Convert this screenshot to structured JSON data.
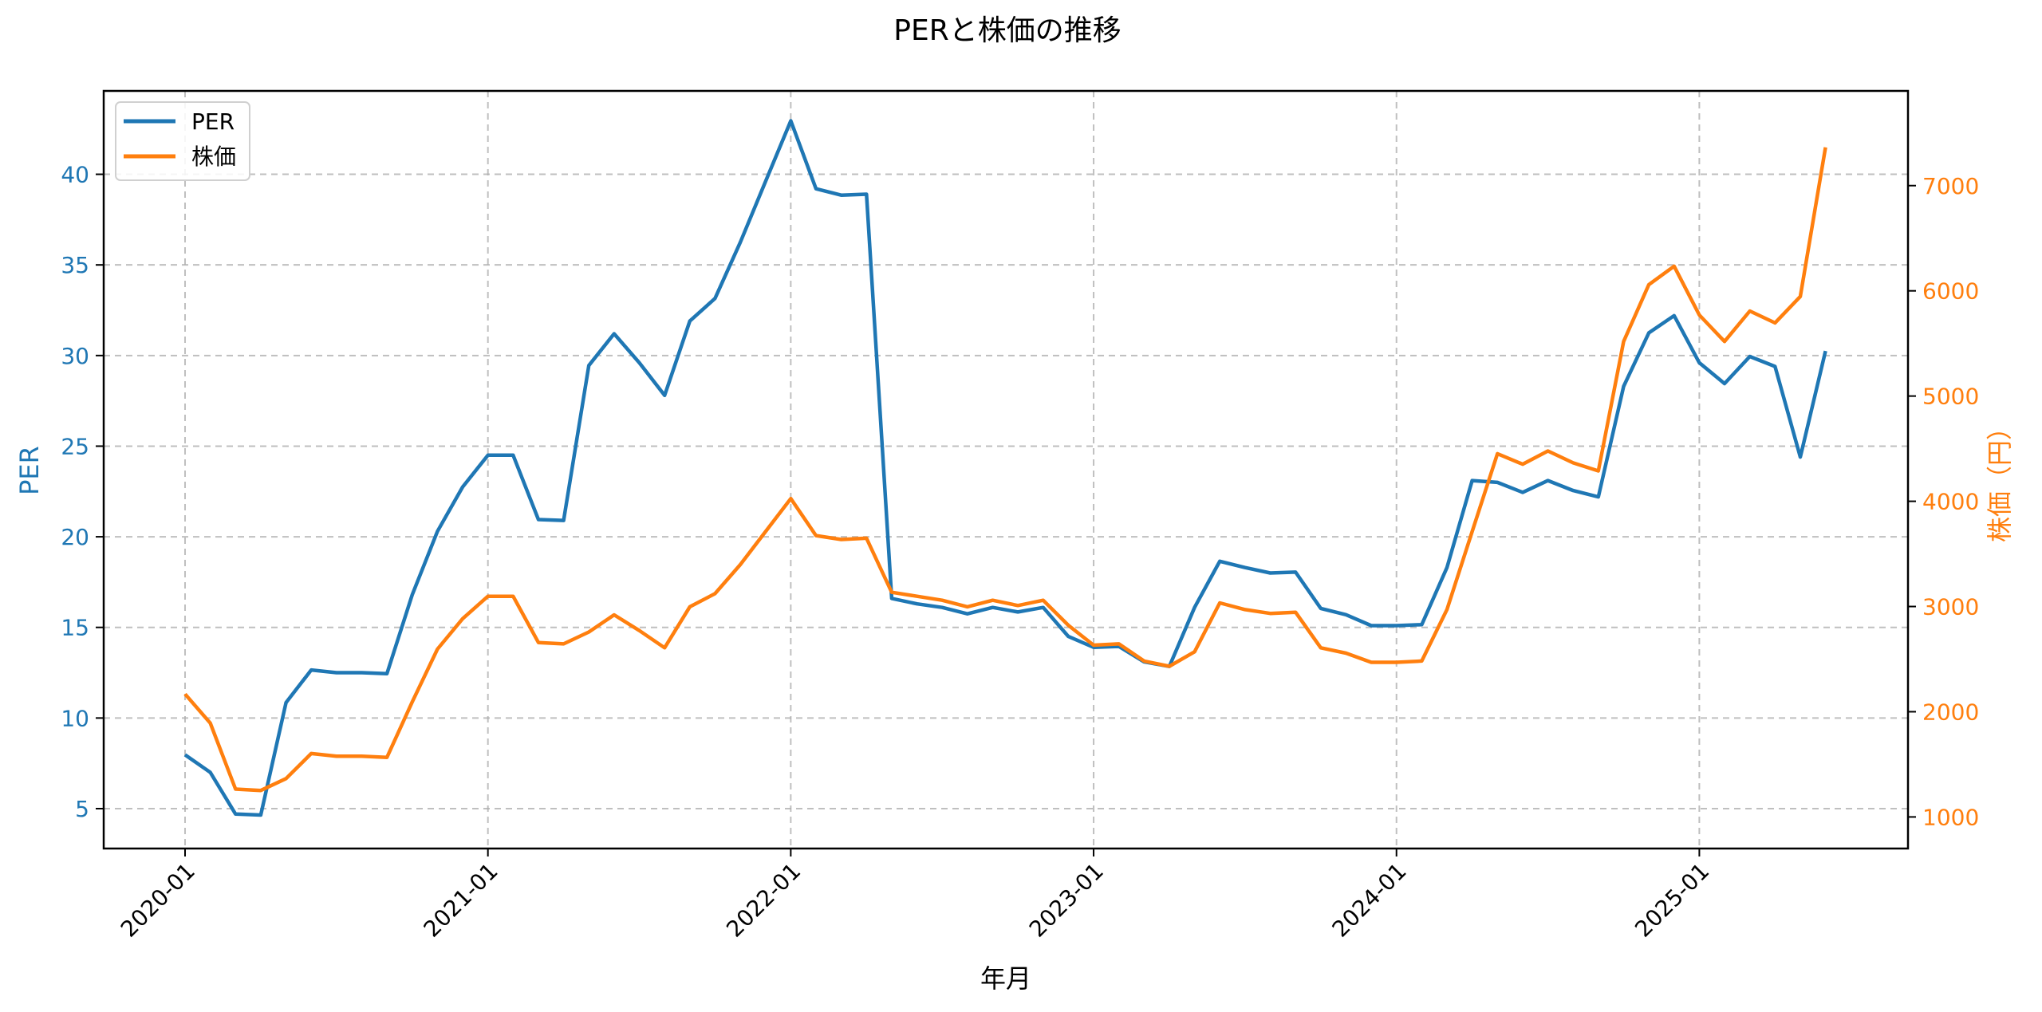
{
  "chart_data": {
    "type": "line",
    "title": "PERと株価の推移",
    "xlabel": "年月",
    "ylabel": "PER",
    "ylabel_right": "株価（円）",
    "x_tick_labels": [
      "2020-01",
      "2021-01",
      "2022-01",
      "2023-01",
      "2024-01",
      "2025-01"
    ],
    "y_ticks_left": [
      5,
      10,
      15,
      20,
      25,
      30,
      35,
      40
    ],
    "y_ticks_right": [
      1000,
      2000,
      3000,
      4000,
      5000,
      6000,
      7000
    ],
    "ylim_left": [
      2.8,
      44.6
    ],
    "ylim_right": [
      700,
      7900
    ],
    "grid": true,
    "legend_position": "upper left",
    "x": [
      "2020-01",
      "2020-02",
      "2020-03",
      "2020-04",
      "2020-05",
      "2020-06",
      "2020-07",
      "2020-08",
      "2020-09",
      "2020-10",
      "2020-11",
      "2020-12",
      "2021-01",
      "2021-02",
      "2021-03",
      "2021-04",
      "2021-05",
      "2021-06",
      "2021-07",
      "2021-08",
      "2021-09",
      "2021-10",
      "2021-11",
      "2021-12",
      "2022-01",
      "2022-02",
      "2022-03",
      "2022-04",
      "2022-05",
      "2022-06",
      "2022-07",
      "2022-08",
      "2022-09",
      "2022-10",
      "2022-11",
      "2022-12",
      "2023-01",
      "2023-02",
      "2023-03",
      "2023-04",
      "2023-05",
      "2023-06",
      "2023-07",
      "2023-08",
      "2023-09",
      "2023-10",
      "2023-11",
      "2023-12",
      "2024-01",
      "2024-02",
      "2024-03",
      "2024-04",
      "2024-05",
      "2024-06",
      "2024-07",
      "2024-08",
      "2024-09",
      "2024-10",
      "2024-11",
      "2024-12",
      "2025-01",
      "2025-02",
      "2025-03",
      "2025-04",
      "2025-05",
      "2025-06"
    ],
    "series": [
      {
        "name": "PER",
        "axis": "left",
        "color": "#1f77b4",
        "values": [
          7.97,
          7.0,
          4.7,
          4.65,
          10.85,
          12.65,
          12.5,
          12.5,
          12.45,
          16.8,
          20.3,
          22.75,
          24.5,
          24.5,
          20.95,
          20.9,
          29.45,
          31.2,
          29.6,
          27.8,
          31.9,
          33.15,
          36.25,
          39.6,
          42.95,
          39.2,
          38.85,
          38.9,
          16.6,
          16.3,
          16.1,
          15.75,
          16.1,
          15.85,
          16.1,
          14.5,
          13.9,
          13.95,
          13.1,
          12.85,
          16.1,
          18.65,
          18.3,
          18.0,
          18.05,
          16.05,
          15.7,
          15.1,
          15.1,
          15.15,
          18.3,
          23.1,
          23.0,
          22.45,
          23.1,
          22.55,
          22.2,
          28.3,
          31.25,
          32.2,
          29.6,
          28.45,
          29.95,
          29.4,
          24.4,
          30.25
        ]
      },
      {
        "name": "株価",
        "axis": "right",
        "color": "#ff7f0e",
        "values": [
          2168,
          1892,
          1265,
          1252,
          1365,
          1603,
          1578,
          1578,
          1566,
          2093,
          2595,
          2884,
          3097,
          3097,
          2658,
          2645,
          2758,
          2921,
          2771,
          2608,
          2997,
          3122,
          3398,
          3712,
          4026,
          3674,
          3637,
          3649,
          3135,
          3097,
          3059,
          2997,
          3059,
          3009,
          3059,
          2821,
          2633,
          2645,
          2482,
          2432,
          2570,
          3034,
          2971,
          2934,
          2946,
          2608,
          2557,
          2470,
          2470,
          2482,
          2971,
          3712,
          4452,
          4352,
          4478,
          4365,
          4289,
          5519,
          6059,
          6234,
          5770,
          5519,
          5808,
          5695,
          5946,
          7364
        ]
      }
    ]
  }
}
